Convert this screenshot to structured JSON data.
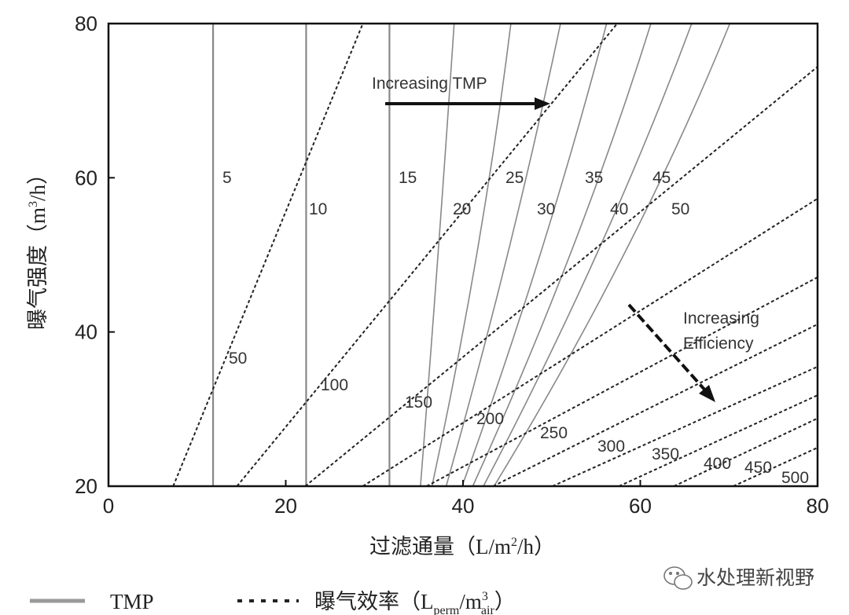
{
  "chart_data": {
    "type": "line",
    "xlim": [
      0,
      80
    ],
    "ylim": [
      20,
      80
    ],
    "xticks": [
      "0",
      "20",
      "40",
      "60",
      "80"
    ],
    "yticks": [
      "20",
      "40",
      "60",
      "80"
    ],
    "grid": false,
    "xlabel": {
      "pre": "过滤通量（L/m",
      "sup": "2",
      "post": "/h）"
    },
    "ylabel": {
      "pre": "曝气强度（m",
      "sup": "3",
      "post": "/h）"
    },
    "legend": {
      "placement": "bottom",
      "tmp": "TMP",
      "eff": {
        "pre": "曝气效率（L",
        "sub1": "perm",
        "mid": "/m",
        "sup": "3",
        "sub2": "air",
        "post": "）"
      }
    },
    "colors": {
      "tmp": "#888888",
      "efficiency": "#222222",
      "axis": "#111111"
    },
    "tmp_series": [
      {
        "name": "5",
        "points": [
          [
            11.8,
            20
          ],
          [
            11.8,
            80
          ]
        ]
      },
      {
        "name": "10",
        "points": [
          [
            22.3,
            20
          ],
          [
            22.3,
            80
          ]
        ]
      },
      {
        "name": "15",
        "points": [
          [
            31.7,
            20
          ],
          [
            31.7,
            80
          ]
        ]
      },
      {
        "name": "20",
        "points": [
          [
            35.2,
            20
          ],
          [
            37.2,
            50.4
          ],
          [
            39.0,
            80
          ]
        ]
      },
      {
        "name": "25",
        "points": [
          [
            36.5,
            20
          ],
          [
            41.6,
            50.4
          ],
          [
            45.4,
            80
          ]
        ]
      },
      {
        "name": "30",
        "points": [
          [
            38.1,
            20
          ],
          [
            45.1,
            50.4
          ],
          [
            51.0,
            80
          ]
        ]
      },
      {
        "name": "35",
        "points": [
          [
            39.9,
            20
          ],
          [
            48.8,
            50.4
          ],
          [
            56.2,
            80
          ]
        ]
      },
      {
        "name": "40",
        "points": [
          [
            41.1,
            20
          ],
          [
            52.2,
            50.4
          ],
          [
            61.2,
            80
          ]
        ]
      },
      {
        "name": "45",
        "points": [
          [
            42.3,
            20
          ],
          [
            55.2,
            50.4
          ],
          [
            65.8,
            80
          ]
        ]
      },
      {
        "name": "50",
        "points": [
          [
            43.5,
            20
          ],
          [
            58.3,
            50.4
          ],
          [
            70.1,
            80
          ]
        ]
      }
    ],
    "efficiency_series": [
      {
        "name": "50",
        "points": [
          [
            7.3,
            20
          ],
          [
            28.7,
            80
          ]
        ]
      },
      {
        "name": "100",
        "points": [
          [
            14.5,
            20
          ],
          [
            57.4,
            80
          ]
        ]
      },
      {
        "name": "150",
        "points": [
          [
            22.2,
            20
          ],
          [
            80,
            74.4
          ]
        ]
      },
      {
        "name": "200",
        "points": [
          [
            28.7,
            20
          ],
          [
            80,
            57.3
          ]
        ]
      },
      {
        "name": "250",
        "points": [
          [
            35.9,
            20
          ],
          [
            80,
            47.1
          ]
        ]
      },
      {
        "name": "300",
        "points": [
          [
            43.4,
            20
          ],
          [
            80,
            41.0
          ]
        ]
      },
      {
        "name": "350",
        "points": [
          [
            50.1,
            20
          ],
          [
            80,
            35.5
          ]
        ]
      },
      {
        "name": "400",
        "points": [
          [
            57.6,
            20
          ],
          [
            80,
            31.8
          ]
        ]
      },
      {
        "name": "450",
        "points": [
          [
            63.8,
            20
          ],
          [
            80,
            28.8
          ]
        ]
      },
      {
        "name": "500",
        "points": [
          [
            70.5,
            20
          ],
          [
            80,
            25.0
          ]
        ]
      }
    ],
    "annotations": {
      "tmp_arrow": "Increasing TMP",
      "eff_arrow_line1": "Increasing",
      "eff_arrow_line2": "Efficiency"
    }
  },
  "watermark": {
    "text": "水处理新视野",
    "icon": "wechat-icon"
  }
}
